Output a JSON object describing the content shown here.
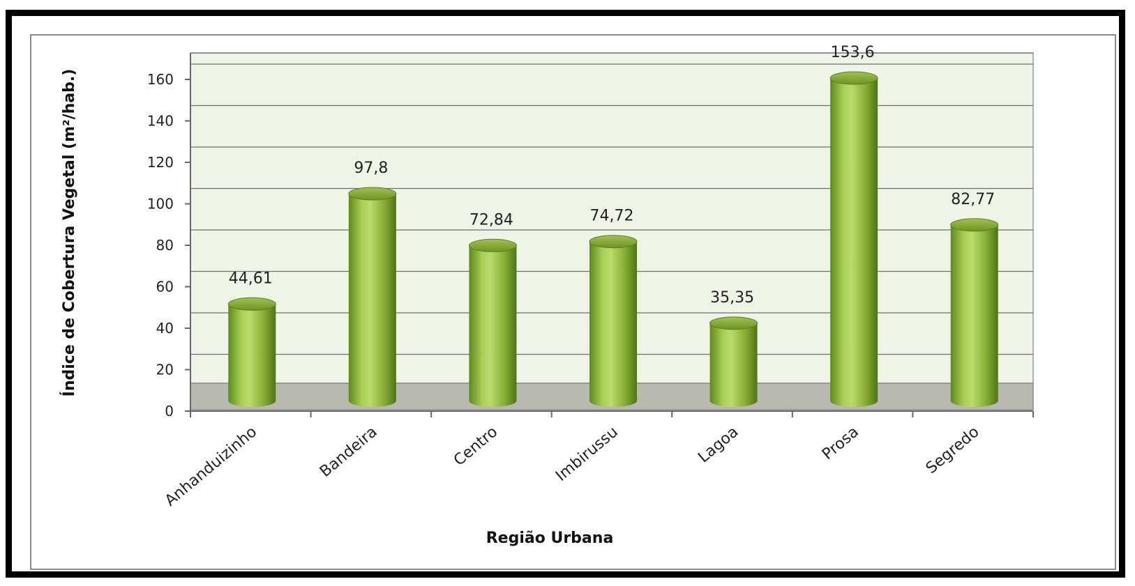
{
  "chart_data": {
    "type": "bar",
    "title": "",
    "xlabel": "Região Urbana",
    "ylabel": "Índice de Cobertura Vegetal (m²/hab.)",
    "categories": [
      "Anhanduizinho",
      "Bandeira",
      "Centro",
      "Imbirussu",
      "Lagoa",
      "Prosa",
      "Segredo"
    ],
    "values": [
      44.61,
      97.8,
      72.84,
      74.72,
      35.35,
      153.6,
      82.77
    ],
    "data_labels": [
      "44,61",
      "97,8",
      "72,84",
      "74,72",
      "35,35",
      "153,6",
      "82,77"
    ],
    "yticks": [
      0,
      20,
      40,
      60,
      80,
      100,
      120,
      140,
      160
    ],
    "ylim": [
      0,
      170
    ],
    "grid": true,
    "legend": "none",
    "colors": {
      "bar": "#8cb33a",
      "bar_dark": "#4e7417",
      "bar_light": "#c3e07a",
      "plot_bg": "#eef4e6",
      "floor": "#b8bab2"
    }
  }
}
